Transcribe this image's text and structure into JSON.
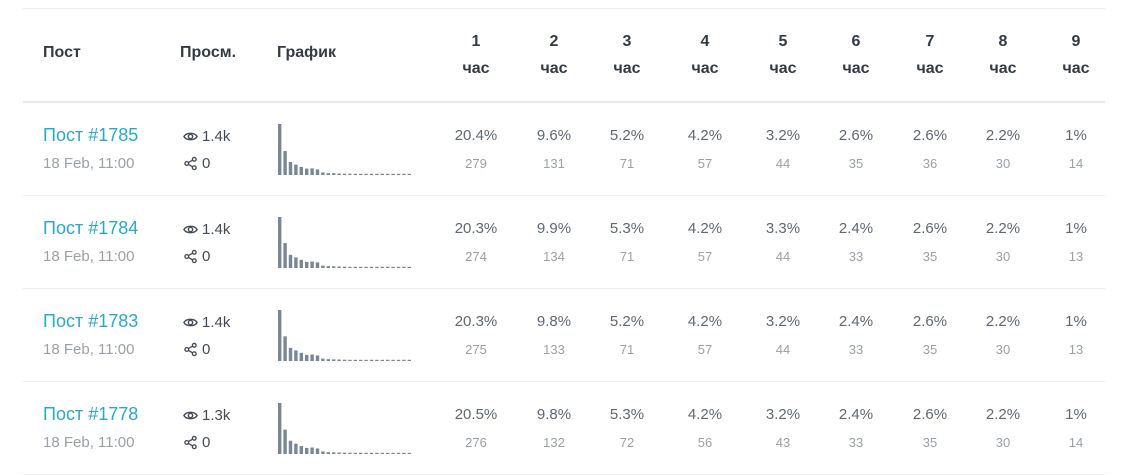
{
  "header": {
    "post": "Пост",
    "views": "Просм.",
    "chart": "График",
    "hours": [
      {
        "num": "1",
        "unit": "час"
      },
      {
        "num": "2",
        "unit": "час"
      },
      {
        "num": "3",
        "unit": "час"
      },
      {
        "num": "4",
        "unit": "час"
      },
      {
        "num": "5",
        "unit": "час"
      },
      {
        "num": "6",
        "unit": "час"
      },
      {
        "num": "7",
        "unit": "час"
      },
      {
        "num": "8",
        "unit": "час"
      },
      {
        "num": "9",
        "unit": "час"
      }
    ]
  },
  "colors": {
    "link": "#27a9cf",
    "bar": "#7b8695",
    "text": "#333a45",
    "muted": "#9aa0a9"
  },
  "icons": {
    "views": "eye-icon",
    "shares": "share-icon"
  },
  "rows": [
    {
      "title": "Пост #1785",
      "date": "18 Feb, 11:00",
      "views": "1.4k",
      "shares": "0",
      "hours": [
        {
          "pct": "20.4%",
          "count": "279"
        },
        {
          "pct": "9.6%",
          "count": "131"
        },
        {
          "pct": "5.2%",
          "count": "71"
        },
        {
          "pct": "4.2%",
          "count": "57"
        },
        {
          "pct": "3.2%",
          "count": "44"
        },
        {
          "pct": "2.6%",
          "count": "35"
        },
        {
          "pct": "2.6%",
          "count": "36"
        },
        {
          "pct": "2.2%",
          "count": "30"
        },
        {
          "pct": "1%",
          "count": "14"
        }
      ]
    },
    {
      "title": "Пост #1784",
      "date": "18 Feb, 11:00",
      "views": "1.4k",
      "shares": "0",
      "hours": [
        {
          "pct": "20.3%",
          "count": "274"
        },
        {
          "pct": "9.9%",
          "count": "134"
        },
        {
          "pct": "5.3%",
          "count": "71"
        },
        {
          "pct": "4.2%",
          "count": "57"
        },
        {
          "pct": "3.3%",
          "count": "44"
        },
        {
          "pct": "2.4%",
          "count": "33"
        },
        {
          "pct": "2.6%",
          "count": "35"
        },
        {
          "pct": "2.2%",
          "count": "30"
        },
        {
          "pct": "1%",
          "count": "13"
        }
      ]
    },
    {
      "title": "Пост #1783",
      "date": "18 Feb, 11:00",
      "views": "1.4k",
      "shares": "0",
      "hours": [
        {
          "pct": "20.3%",
          "count": "275"
        },
        {
          "pct": "9.8%",
          "count": "133"
        },
        {
          "pct": "5.2%",
          "count": "71"
        },
        {
          "pct": "4.2%",
          "count": "57"
        },
        {
          "pct": "3.2%",
          "count": "44"
        },
        {
          "pct": "2.4%",
          "count": "33"
        },
        {
          "pct": "2.6%",
          "count": "35"
        },
        {
          "pct": "2.2%",
          "count": "30"
        },
        {
          "pct": "1%",
          "count": "13"
        }
      ]
    },
    {
      "title": "Пост #1778",
      "date": "18 Feb, 11:00",
      "views": "1.3k",
      "shares": "0",
      "hours": [
        {
          "pct": "20.5%",
          "count": "276"
        },
        {
          "pct": "9.8%",
          "count": "132"
        },
        {
          "pct": "5.3%",
          "count": "72"
        },
        {
          "pct": "4.2%",
          "count": "56"
        },
        {
          "pct": "3.2%",
          "count": "43"
        },
        {
          "pct": "2.4%",
          "count": "33"
        },
        {
          "pct": "2.6%",
          "count": "35"
        },
        {
          "pct": "2.2%",
          "count": "30"
        },
        {
          "pct": "1%",
          "count": "14"
        }
      ]
    }
  ],
  "chart_data": [
    {
      "type": "bar",
      "values": [
        279,
        131,
        71,
        57,
        44,
        35,
        36,
        30,
        14,
        10,
        10,
        8,
        7,
        5,
        4,
        3,
        2,
        2,
        3,
        3,
        4,
        5,
        4,
        4,
        3
      ]
    },
    {
      "type": "bar",
      "values": [
        274,
        134,
        71,
        57,
        44,
        33,
        35,
        30,
        13,
        10,
        9,
        8,
        7,
        5,
        4,
        3,
        2,
        2,
        3,
        3,
        4,
        5,
        4,
        4,
        3
      ]
    },
    {
      "type": "bar",
      "values": [
        275,
        133,
        71,
        57,
        44,
        33,
        35,
        30,
        13,
        10,
        9,
        8,
        7,
        5,
        4,
        3,
        2,
        2,
        3,
        3,
        4,
        5,
        4,
        4,
        3
      ]
    },
    {
      "type": "bar",
      "values": [
        276,
        132,
        72,
        56,
        43,
        33,
        35,
        30,
        14,
        10,
        9,
        8,
        7,
        5,
        4,
        3,
        2,
        2,
        3,
        3,
        4,
        5,
        4,
        4,
        3
      ]
    }
  ]
}
